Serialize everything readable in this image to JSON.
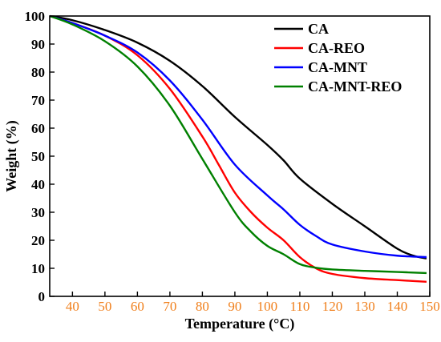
{
  "chart_data": {
    "type": "line",
    "title": "",
    "xlabel": "Temperature (°C)",
    "ylabel": "Weight (%)",
    "xlim": [
      33,
      150
    ],
    "ylim": [
      0,
      100
    ],
    "xticks": [
      40,
      50,
      60,
      70,
      80,
      90,
      100,
      110,
      120,
      130,
      140,
      150
    ],
    "yticks": [
      0,
      10,
      20,
      30,
      40,
      50,
      60,
      70,
      80,
      90,
      100
    ],
    "x_tick_color": "#f07f1b",
    "grid": false,
    "legend_position": "top-right",
    "series": [
      {
        "name": "CA",
        "color": "#000000",
        "x": [
          33,
          40,
          50,
          60,
          70,
          80,
          90,
          100,
          105,
          110,
          120,
          130,
          140,
          145,
          149
        ],
        "y": [
          100,
          98.5,
          95,
          90.5,
          84,
          75,
          64,
          54,
          48.5,
          42,
          33,
          25,
          17,
          14.5,
          13.5
        ]
      },
      {
        "name": "CA-REO",
        "color": "#ff0000",
        "x": [
          33,
          40,
          50,
          60,
          70,
          80,
          85,
          90,
          95,
          100,
          105,
          110,
          115,
          120,
          130,
          140,
          149
        ],
        "y": [
          100,
          97.5,
          93,
          86,
          74,
          57,
          47,
          37,
          30,
          24.5,
          20,
          14,
          10,
          8,
          6.5,
          5.8,
          5.2
        ]
      },
      {
        "name": "CA-MNT",
        "color": "#0000ff",
        "x": [
          33,
          40,
          50,
          60,
          70,
          80,
          90,
          100,
          105,
          110,
          115,
          120,
          130,
          140,
          149
        ],
        "y": [
          100,
          97.5,
          93,
          87,
          77,
          63,
          47,
          36,
          31,
          25.5,
          21.5,
          18.5,
          16,
          14.5,
          14
        ]
      },
      {
        "name": "CA-MNT-REO",
        "color": "#008000",
        "x": [
          33,
          40,
          50,
          60,
          70,
          80,
          90,
          95,
          100,
          105,
          110,
          115,
          120,
          130,
          140,
          149
        ],
        "y": [
          100,
          97,
          91,
          82,
          68,
          49,
          30,
          23,
          18,
          15,
          11.5,
          10.2,
          9.6,
          9.1,
          8.7,
          8.3
        ]
      }
    ]
  }
}
